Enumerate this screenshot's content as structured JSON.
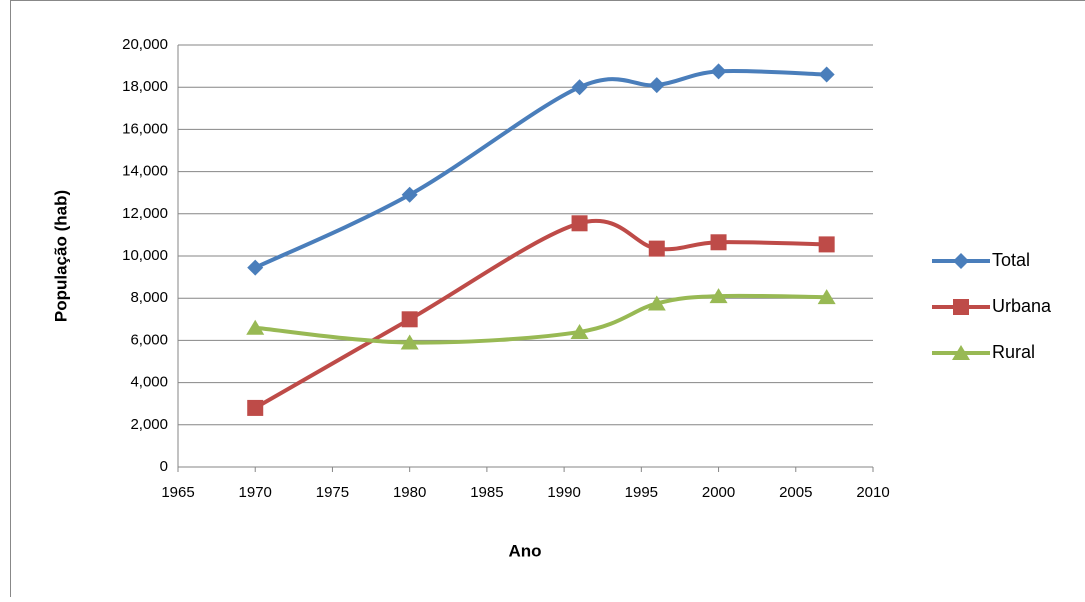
{
  "chart_data": {
    "type": "line",
    "smooth": true,
    "x_label": "Ano",
    "y_label": "População (hab)",
    "x": [
      1970,
      1980,
      1991,
      1996,
      2000,
      2007
    ],
    "series": [
      {
        "name": "Total",
        "color": "#4a7ebb",
        "marker": "diamond",
        "values": [
          9450,
          12900,
          18000,
          18100,
          18750,
          18600
        ]
      },
      {
        "name": "Urbana",
        "color": "#be4b48",
        "marker": "square",
        "values": [
          2800,
          7000,
          11550,
          10350,
          10650,
          10550
        ]
      },
      {
        "name": "Rural",
        "color": "#98b954",
        "marker": "triangle",
        "values": [
          6600,
          5900,
          6400,
          7750,
          8100,
          8050
        ]
      }
    ],
    "xlim": [
      1965,
      2010
    ],
    "xticks": [
      1965,
      1970,
      1975,
      1980,
      1985,
      1990,
      1995,
      2000,
      2005,
      2010
    ],
    "ylim": [
      0,
      20000
    ],
    "yticks": [
      0,
      {
        "value": 2000,
        "label": "2,000"
      },
      {
        "value": 4000,
        "label": "4,000"
      },
      {
        "value": 6000,
        "label": "6,000"
      },
      {
        "value": 8000,
        "label": "8,000"
      },
      {
        "value": 10000,
        "label": "10,000"
      },
      {
        "value": 12000,
        "label": "12,000"
      },
      {
        "value": 14000,
        "label": "14,000"
      },
      {
        "value": 16000,
        "label": "16,000"
      },
      {
        "value": 18000,
        "label": "18,000"
      },
      {
        "value": 20000,
        "label": "20,000"
      }
    ],
    "grid": true,
    "legend": "right"
  }
}
